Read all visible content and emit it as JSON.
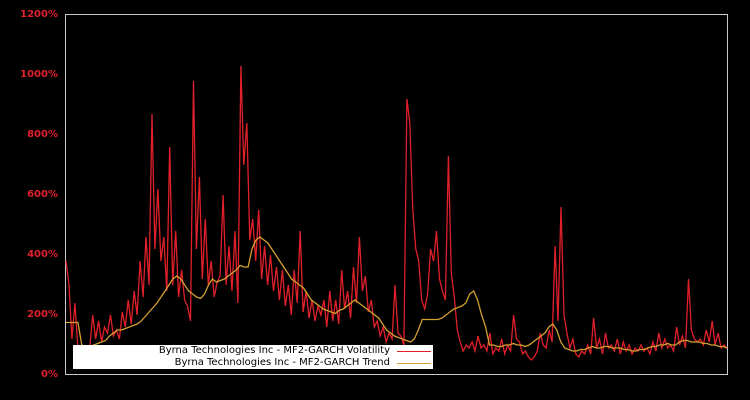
{
  "chart_data": {
    "type": "line",
    "title": "",
    "xlabel": "",
    "ylabel": "",
    "ylim": [
      0,
      1200
    ],
    "yticks": [
      "0%",
      "200%",
      "400%",
      "600%",
      "800%",
      "1000%",
      "1200%"
    ],
    "grid": false,
    "legend_position": "lower-left (inside plot)",
    "background": "#000000",
    "axis_color": "#c8c8c8",
    "tick_label_color": "#e0202a",
    "series": [
      {
        "name": "Byrna Technologies Inc - MF2-GARCH Volatility",
        "color": "#e0202a",
        "values": [
          380,
          300,
          120,
          240,
          90,
          60,
          80,
          70,
          90,
          200,
          120,
          180,
          110,
          160,
          140,
          200,
          130,
          150,
          120,
          210,
          160,
          250,
          170,
          280,
          200,
          380,
          260,
          460,
          300,
          870,
          420,
          620,
          380,
          460,
          280,
          760,
          300,
          480,
          260,
          350,
          250,
          230,
          180,
          980,
          420,
          660,
          320,
          520,
          300,
          380,
          260,
          310,
          330,
          600,
          300,
          430,
          280,
          480,
          240,
          1030,
          700,
          840,
          450,
          520,
          380,
          550,
          320,
          430,
          300,
          400,
          280,
          360,
          250,
          350,
          230,
          300,
          200,
          350,
          240,
          480,
          210,
          280,
          190,
          250,
          180,
          230,
          200,
          250,
          160,
          280,
          180,
          250,
          170,
          350,
          220,
          280,
          190,
          360,
          240,
          460,
          280,
          330,
          210,
          250,
          160,
          180,
          130,
          160,
          110,
          140,
          120,
          300,
          140,
          130,
          100,
          920,
          840,
          550,
          420,
          380,
          250,
          220,
          270,
          420,
          380,
          480,
          320,
          280,
          250,
          730,
          340,
          260,
          150,
          110,
          80,
          100,
          90,
          110,
          80,
          130,
          90,
          100,
          80,
          140,
          70,
          90,
          80,
          120,
          70,
          100,
          80,
          200,
          120,
          110,
          70,
          80,
          60,
          50,
          60,
          80,
          140,
          100,
          90,
          150,
          110,
          430,
          180,
          560,
          200,
          140,
          90,
          120,
          70,
          60,
          80,
          70,
          100,
          70,
          190,
          90,
          120,
          70,
          140,
          90,
          100,
          80,
          120,
          70,
          110,
          80,
          100,
          70,
          90,
          80,
          100,
          80,
          90,
          70,
          110,
          80,
          140,
          90,
          120,
          90,
          100,
          80,
          160,
          100,
          130,
          90,
          320,
          150,
          120,
          110,
          120,
          100,
          150,
          110,
          180,
          100,
          140,
          90,
          100,
          90
        ]
      },
      {
        "name": "Byrna Technologies Inc - MF2-GARCH Trend",
        "color": "#d4a030",
        "values": [
          175,
          175,
          175,
          175,
          100,
          95,
          95,
          100,
          105,
          110,
          115,
          130,
          140,
          150,
          150,
          155,
          160,
          165,
          170,
          180,
          195,
          210,
          225,
          240,
          260,
          280,
          300,
          320,
          330,
          320,
          300,
          280,
          270,
          260,
          255,
          270,
          300,
          320,
          310,
          315,
          320,
          330,
          340,
          350,
          365,
          360,
          360,
          420,
          450,
          460,
          450,
          440,
          420,
          400,
          380,
          360,
          340,
          320,
          310,
          300,
          290,
          270,
          250,
          240,
          230,
          220,
          215,
          210,
          205,
          215,
          220,
          230,
          240,
          250,
          240,
          230,
          220,
          210,
          200,
          190,
          170,
          150,
          140,
          130,
          125,
          120,
          115,
          110,
          120,
          150,
          185,
          185,
          185,
          185,
          185,
          190,
          200,
          210,
          220,
          225,
          230,
          240,
          270,
          280,
          250,
          200,
          160,
          100,
          100,
          95,
          95,
          100,
          100,
          105,
          100,
          100,
          95,
          100,
          110,
          120,
          130,
          140,
          160,
          170,
          150,
          110,
          90,
          85,
          80,
          80,
          85,
          85,
          90,
          95,
          90,
          90,
          95,
          95,
          90,
          90,
          90,
          85,
          85,
          80,
          80,
          85,
          85,
          90,
          95,
          95,
          100,
          100,
          105,
          100,
          100,
          110,
          115,
          115,
          110,
          110,
          110,
          105,
          105,
          100,
          100,
          95,
          95,
          90
        ]
      }
    ]
  },
  "legend": {
    "volatility_label": "Byrna Technologies Inc - MF2-GARCH Volatility",
    "trend_label": "Byrna Technologies Inc - MF2-GARCH Trend"
  }
}
